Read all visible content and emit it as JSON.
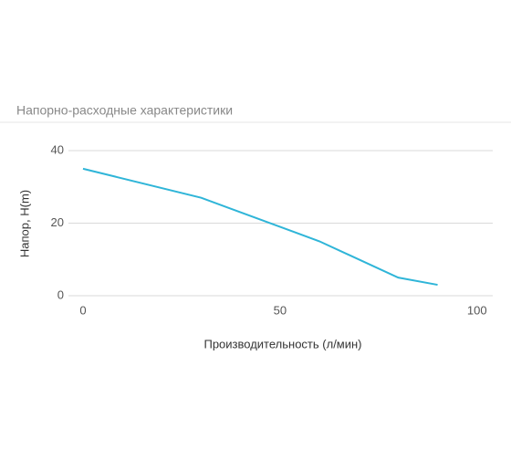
{
  "header": {
    "title": "Напорно-расходные характеристики"
  },
  "chart_data": {
    "type": "line",
    "x_label": "Производительность (л/мин)",
    "y_label": "Напор, H(m)",
    "x": [
      0,
      30,
      60,
      80,
      90
    ],
    "series": [
      {
        "name": "Напор",
        "color": "#2fb5d8",
        "values": [
          35,
          27,
          15,
          5,
          3
        ]
      }
    ],
    "xlim": [
      -3.7,
      104
    ],
    "xticks": [
      0,
      50,
      100
    ],
    "ylim": [
      0,
      40
    ],
    "yticks": [
      0,
      20,
      40
    ],
    "grid": true
  }
}
